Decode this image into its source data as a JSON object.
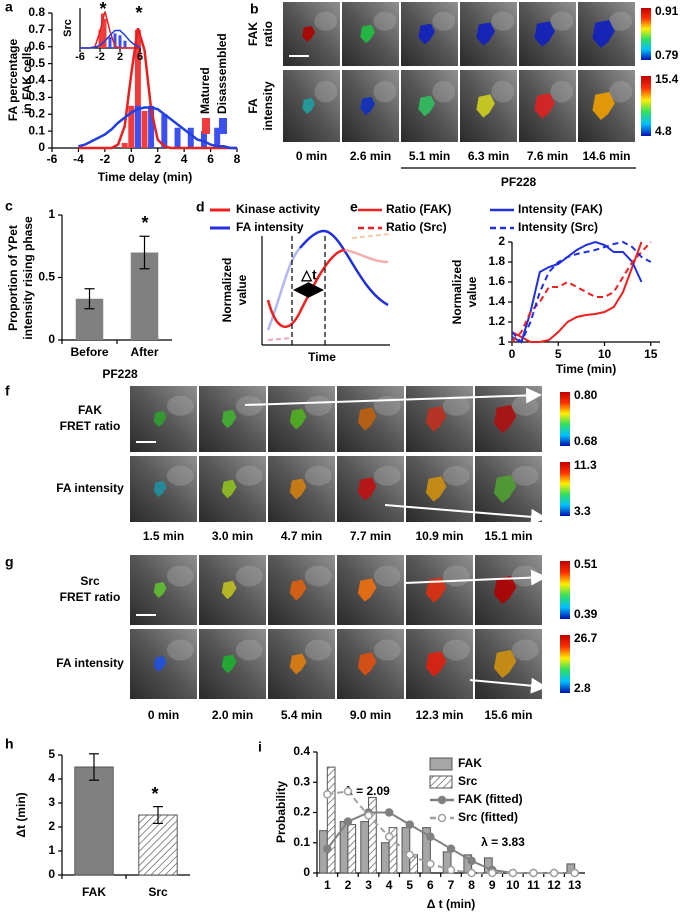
{
  "chart_data": [
    {
      "panel_label": "a",
      "type": "bar",
      "xlabel": "Time delay (min)",
      "ylabel": [
        "FA percentage",
        "in FAK cells"
      ],
      "xlim": [
        -6,
        8
      ],
      "xticks": [
        -6,
        -4,
        -2,
        0,
        2,
        4,
        6,
        8
      ],
      "ylim": [
        0,
        0.8
      ],
      "yticks": [
        0,
        0.1,
        0.2,
        0.3,
        0.4,
        0.5,
        0.6,
        0.7,
        0.8
      ],
      "annotation": "*",
      "legend": "right",
      "series": [
        {
          "name": "Matured",
          "color": "#f03c3c",
          "x": [
            -0.5,
            0,
            0.5,
            1,
            1.5
          ],
          "values": [
            0.03,
            0.25,
            0.7,
            0.22,
            0.03
          ]
        },
        {
          "name": "Disassembled",
          "color": "#3c50f0",
          "x": [
            0.5,
            1.5,
            2.5,
            3.5,
            4.5,
            5.5,
            6.5
          ],
          "values": [
            0.25,
            0.25,
            0.2,
            0.12,
            0.12,
            0.1,
            0.12
          ]
        },
        {
          "type": "line",
          "color": "#e82020",
          "x": [
            -4,
            -3.5,
            -3,
            -2.5,
            -2,
            -1.5,
            -1,
            -0.5,
            0,
            0.5,
            1,
            1.5,
            2,
            2.5,
            3,
            3.5,
            4,
            4.5,
            5,
            5.5,
            6,
            6.5,
            7,
            7.5,
            8
          ],
          "values": [
            0,
            0,
            0,
            0,
            0,
            0,
            0.02,
            0.13,
            0.44,
            0.71,
            0.58,
            0.23,
            0.05,
            0.01,
            0,
            0,
            0,
            0,
            0,
            0,
            0,
            0,
            0,
            0,
            0
          ]
        },
        {
          "type": "line",
          "color": "#2040e0",
          "x": [
            -4,
            -3.5,
            -3,
            -2.5,
            -2,
            -1.5,
            -1,
            -0.5,
            0,
            0.5,
            1,
            1.5,
            2,
            2.5,
            3,
            3.5,
            4,
            4.5,
            5,
            5.5,
            6,
            6.5,
            7,
            7.5,
            8
          ],
          "values": [
            0.01,
            0.02,
            0.04,
            0.06,
            0.08,
            0.11,
            0.15,
            0.18,
            0.21,
            0.23,
            0.24,
            0.24,
            0.23,
            0.2,
            0.17,
            0.14,
            0.11,
            0.08,
            0.05,
            0.04,
            0.02,
            0.01,
            0.01,
            0,
            0
          ]
        }
      ]
    },
    {
      "type": "bar",
      "ylabel": "Src",
      "xlim": [
        -6,
        6
      ],
      "xticks": [
        -6,
        -2,
        2,
        6
      ],
      "ylim": [
        0,
        1.1
      ],
      "annotation": "*",
      "series": [
        {
          "color": "#f03c3c",
          "x": [
            -2,
            -1.5,
            -1
          ],
          "values": [
            0.5,
            0.95,
            0.8
          ]
        },
        {
          "color": "#3c50f0",
          "x": [
            0,
            1,
            2,
            3
          ],
          "values": [
            0.3,
            0.4,
            0.35,
            0.2
          ]
        },
        {
          "type": "line",
          "color": "#e82020",
          "x": [
            -6,
            -5,
            -4,
            -3,
            -2,
            -1,
            0,
            1,
            2,
            3,
            4,
            5,
            6
          ],
          "values": [
            0,
            0,
            0,
            0.04,
            0.46,
            1,
            0.46,
            0.04,
            0,
            0,
            0,
            0,
            0
          ]
        },
        {
          "type": "line",
          "color": "#2040e0",
          "x": [
            -6,
            -5,
            -4,
            -3,
            -2,
            -1,
            0,
            1,
            2,
            3,
            4,
            5,
            6
          ],
          "values": [
            0,
            0,
            0,
            0.02,
            0.08,
            0.19,
            0.35,
            0.48,
            0.48,
            0.35,
            0.19,
            0.08,
            0.02
          ]
        }
      ]
    },
    {
      "panel_label": "c",
      "type": "bar",
      "categories": [
        "Before",
        "After"
      ],
      "group_label": "PF228",
      "ylabel": [
        "Proportion of YPet",
        "intensity rising phase"
      ],
      "ylim": [
        0,
        1
      ],
      "yticks": [
        0,
        0.5,
        1
      ],
      "annotation": "*",
      "series": [
        {
          "color": "#808080",
          "values": [
            0.33,
            0.7
          ],
          "errors": [
            0.08,
            0.13
          ]
        }
      ]
    },
    {
      "panel_label": "e",
      "type": "line",
      "xlabel": "Time (min)",
      "ylabel": [
        "Normalized",
        "value"
      ],
      "x": [
        0,
        1,
        2,
        3,
        4,
        5,
        6,
        7,
        8,
        9,
        10,
        11,
        12,
        13,
        14,
        15
      ],
      "xlim": [
        0,
        16
      ],
      "xticks": [
        0,
        5,
        10,
        15
      ],
      "ylim": [
        1,
        2
      ],
      "yticks": [
        1,
        1.2,
        1.4,
        1.6,
        1.8,
        2
      ],
      "legend": "top",
      "series": [
        {
          "name": "Ratio (FAK)",
          "color": "#f02020",
          "values": [
            1.1,
            1.05,
            1.0,
            1.0,
            1.02,
            1.1,
            1.2,
            1.25,
            1.27,
            1.28,
            1.3,
            1.35,
            1.5,
            1.75,
            2.0,
            null
          ]
        },
        {
          "name": "Intensity (FAK)",
          "color": "#2030e0",
          "values": [
            1.05,
            1.0,
            1.3,
            1.7,
            1.75,
            1.78,
            1.85,
            1.92,
            1.97,
            2.0,
            1.97,
            1.9,
            1.9,
            1.8,
            1.6,
            null
          ]
        },
        {
          "name": "Ratio (Src)",
          "color": "#f02020",
          "dash": true,
          "values": [
            1.0,
            1.1,
            1.3,
            1.4,
            1.55,
            1.55,
            1.6,
            1.55,
            1.5,
            1.45,
            1.45,
            1.5,
            1.65,
            1.8,
            1.9,
            2.0
          ]
        },
        {
          "name": "Intensity (Src)",
          "color": "#2030e0",
          "dash": true,
          "values": [
            1.1,
            1.0,
            1.2,
            1.5,
            1.7,
            1.8,
            1.85,
            1.88,
            1.9,
            1.92,
            1.95,
            1.98,
            2.0,
            1.95,
            1.85,
            1.8
          ]
        }
      ]
    },
    {
      "panel_label": "h",
      "type": "bar",
      "categories": [
        "FAK",
        "Src"
      ],
      "ylabel": "Δt (min)",
      "ylim": [
        0,
        5
      ],
      "yticks": [
        0,
        1,
        2,
        3,
        4,
        5
      ],
      "annotation": "*",
      "series": [
        {
          "colors": [
            "#808080",
            "#ffffff"
          ],
          "hatch": [
            false,
            true
          ],
          "values": [
            4.5,
            2.5
          ],
          "errors": [
            0.55,
            0.35
          ]
        }
      ]
    },
    {
      "panel_label": "i",
      "type": "bar",
      "categories": [
        "1",
        "2",
        "3",
        "4",
        "5",
        "6",
        "7",
        "8",
        "9",
        "10",
        "11",
        "12",
        "13"
      ],
      "xlabel": "Δ t (min)",
      "ylabel": "Probability",
      "ylim": [
        0,
        0.4
      ],
      "yticks": [
        0,
        0.1,
        0.2,
        0.3,
        0.4
      ],
      "annotations": [
        "λ = 2.09",
        "λ = 3.83"
      ],
      "legend": "top-right",
      "series": [
        {
          "name": "FAK",
          "color": "#a6a6a6",
          "values": [
            0.14,
            0.17,
            0.17,
            0.1,
            0.15,
            0.15,
            0.07,
            0.06,
            0.05,
            0,
            0,
            0,
            0.03
          ]
        },
        {
          "name": "Src",
          "color": "#ffffff",
          "hatch": true,
          "values": [
            0.35,
            0.16,
            0.25,
            0.15,
            0.06,
            0,
            0,
            0,
            0,
            0,
            0,
            0,
            0
          ]
        },
        {
          "name": "FAK (fitted)",
          "type": "line",
          "color": "#808080",
          "marker": "filled",
          "values": [
            0.08,
            0.17,
            0.2,
            0.2,
            0.16,
            0.12,
            0.08,
            0.04,
            0.01,
            0,
            0,
            0,
            0
          ]
        },
        {
          "name": "Src (fitted)",
          "type": "line",
          "color": "#a0a0a0",
          "dash": true,
          "marker": "open",
          "values": [
            0.26,
            0.27,
            0.19,
            0.12,
            0.06,
            0.03,
            0.01,
            0,
            0,
            0,
            0,
            0,
            0
          ]
        }
      ]
    }
  ],
  "image_panels": {
    "b": {
      "panel_label": "b",
      "row_labels": [
        [
          "FAK",
          "ratio"
        ],
        [
          "FA",
          "intensity"
        ]
      ],
      "times": [
        "0 min",
        "2.6 min",
        "5.1 min",
        "6.3 min",
        "7.6 min",
        "14.6 min"
      ],
      "treatment": "PF228",
      "colorbars": [
        [
          "0.91",
          "0.79"
        ],
        [
          "15.4",
          "4.8"
        ]
      ]
    },
    "f": {
      "panel_label": "f",
      "row_labels": [
        [
          "FAK",
          "FRET ratio"
        ],
        [
          "FA intensity"
        ]
      ],
      "times": [
        "1.5 min",
        "3.0 min",
        "4.7 min",
        "7.7  min",
        "10.9 min",
        "15.1 min"
      ],
      "colorbars": [
        [
          "0.80",
          "0.68"
        ],
        [
          "11.3",
          "3.3"
        ]
      ]
    },
    "g": {
      "panel_label": "g",
      "row_labels": [
        [
          "Src",
          "FRET ratio"
        ],
        [
          "FA intensity"
        ]
      ],
      "times": [
        "0 min",
        "2.0 min",
        "5.4 min",
        "9.0 min",
        "12.3 min",
        "15.6 min"
      ],
      "colorbars": [
        [
          "0.51",
          "0.39"
        ],
        [
          "26.7",
          "2.8"
        ]
      ]
    }
  },
  "schematic": {
    "panel_label": "d",
    "legend": [
      "Kinase activity",
      "FA intensity"
    ],
    "ylabel": [
      "Normalized",
      "value"
    ],
    "xlabel": "Time",
    "delta": "△t"
  }
}
